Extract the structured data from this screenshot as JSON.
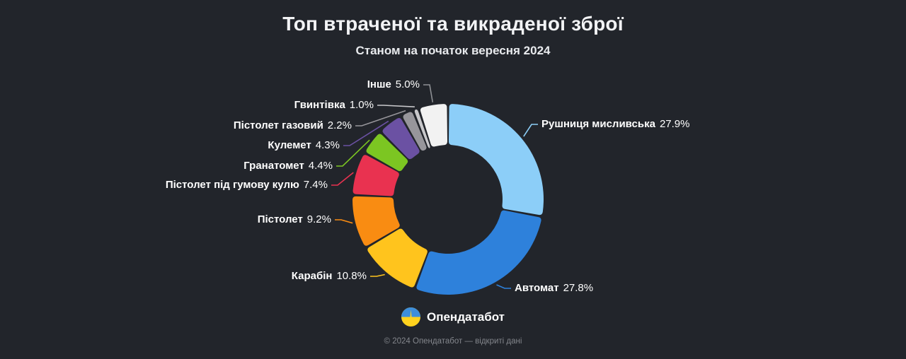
{
  "chart_data": {
    "type": "pie",
    "variant": "donut",
    "title": "Топ втраченої та викраденої зброї",
    "subtitle": "Станом на початок вересня 2024",
    "start_angle_deg": 0,
    "direction": "clockwise",
    "inner_radius_ratio": 0.57,
    "legend": "none",
    "slices": [
      {
        "label": "Рушниця мисливська",
        "value": 27.9,
        "pct_label": "27.9%",
        "color": "#8CCEF8",
        "label_side": "right"
      },
      {
        "label": "Автомат",
        "value": 27.8,
        "pct_label": "27.8%",
        "color": "#2E81DB",
        "label_side": "right"
      },
      {
        "label": "Карабін",
        "value": 10.8,
        "pct_label": "10.8%",
        "color": "#FFC41D",
        "label_side": "left"
      },
      {
        "label": "Пістолет",
        "value": 9.2,
        "pct_label": "9.2%",
        "color": "#F98C12",
        "label_side": "left"
      },
      {
        "label": "Пістолет під гумову кулю",
        "value": 7.4,
        "pct_label": "7.4%",
        "color": "#E93250",
        "label_side": "left"
      },
      {
        "label": "Гранатомет",
        "value": 4.4,
        "pct_label": "4.4%",
        "color": "#7CC622",
        "label_side": "left"
      },
      {
        "label": "Кулемет",
        "value": 4.3,
        "pct_label": "4.3%",
        "color": "#6B51A3",
        "label_side": "left"
      },
      {
        "label": "Пістолет газовий",
        "value": 2.2,
        "pct_label": "2.2%",
        "color": "#97969B",
        "label_side": "left"
      },
      {
        "label": "Гвинтівка",
        "value": 1.0,
        "pct_label": "1.0%",
        "color": "#C8C8CB",
        "label_side": "left"
      },
      {
        "label": "Інше",
        "value": 5.0,
        "pct_label": "5.0%",
        "color": "#F2F2F2",
        "label_side": "left"
      }
    ]
  },
  "branding": {
    "logo_icon": "opendatabot-circle-ukraine-flag",
    "name": "Опендатабот"
  },
  "footer": {
    "text": "© 2024 Опендатабот — відкриті дані"
  },
  "colors": {
    "background": "#22252b",
    "title_text": "#f2f3f5",
    "label_text": "#ffffff",
    "muted_text": "#83868c"
  }
}
